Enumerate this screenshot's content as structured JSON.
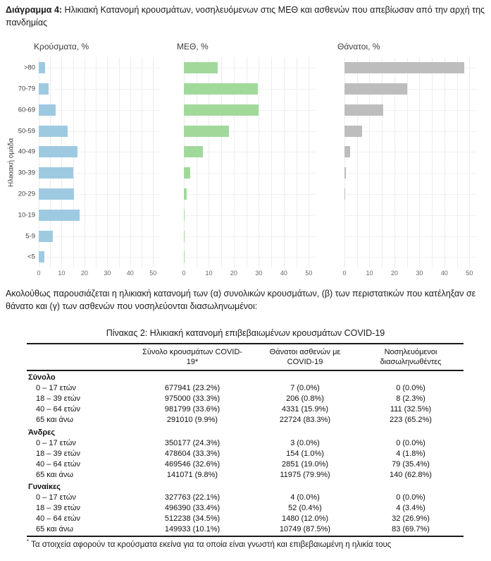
{
  "heading": {
    "prefix": "Διάγραμμα 4:",
    "text": " Ηλικιακή Κατανομή κρουσμάτων, νοσηλευόμενων στις ΜΕΘ και ασθενών που απεβίωσαν από την αρχή της πανδημίας"
  },
  "chart_data": [
    {
      "type": "bar",
      "orientation": "horizontal",
      "title": "Κρούσματα, %",
      "ylabel": "Ηλικιακή ομάδα",
      "categories": [
        ">80",
        "70-79",
        "60-69",
        "50-59",
        "40-49",
        "30-39",
        "20-29",
        "10-19",
        "5-9",
        "<5"
      ],
      "values": [
        2.7,
        4.2,
        7.5,
        12.5,
        17.1,
        15.0,
        15.3,
        18.0,
        6.3,
        2.6
      ],
      "color": "#9ECAE1",
      "xlim": [
        0,
        50
      ],
      "xticks": [
        0,
        10,
        20,
        30,
        40,
        50
      ],
      "grid": true,
      "legend": "none"
    },
    {
      "type": "bar",
      "orientation": "horizontal",
      "title": "ΜΕΘ, %",
      "ylabel": "",
      "categories": [
        ">80",
        "70-79",
        "60-69",
        "50-59",
        "40-49",
        "30-39",
        "20-29",
        "10-19",
        "5-9",
        "<5"
      ],
      "values": [
        13.5,
        29.5,
        30.0,
        18.0,
        7.5,
        2.5,
        1.0,
        0.3,
        0.1,
        0.3
      ],
      "color": "#A1D99B",
      "xlim": [
        0,
        50
      ],
      "xticks": [
        0,
        10,
        20,
        30,
        40,
        50
      ],
      "grid": true,
      "legend": "none"
    },
    {
      "type": "bar",
      "orientation": "horizontal",
      "title": "Θάνατοι, %",
      "ylabel": "",
      "categories": [
        ">80",
        "70-79",
        "60-69",
        "50-59",
        "40-49",
        "30-39",
        "20-29",
        "10-19",
        "5-9",
        "<5"
      ],
      "values": [
        48.0,
        25.0,
        15.5,
        7.0,
        2.3,
        0.6,
        0.2,
        0,
        0,
        0
      ],
      "color": "#BDBDBD",
      "xlim": [
        0,
        50
      ],
      "xticks": [
        0,
        10,
        20,
        30,
        40,
        50
      ],
      "grid": true,
      "legend": "none"
    }
  ],
  "paragraph": "Ακολούθως παρουσιάζεται η ηλικιακή κατανομή των (α) συνολικών κρουσμάτων, (β) των περιστατικών που κατέληξαν σε θάνατο και (γ) των ασθενών που νοσηλεύονται διασωληνωμένοι:",
  "table": {
    "title": "Πίνακας 2: Ηλικιακή κατανομή επιβεβαιωμένων κρουσμάτων COVID-19",
    "columns": [
      "",
      "Σύνολο κρουσμάτων COVID-19*",
      "Θάνατοι ασθενών με COVID-19",
      "Νοσηλευόμενοι διασωληνωθέντες"
    ],
    "sections": [
      {
        "label": "Σύνολο",
        "rows": [
          [
            "0 – 17 ετών",
            "677941 (23.2%)",
            "7 (0.0%)",
            "0 (0.0%)"
          ],
          [
            "18 – 39 ετών",
            "975000 (33.3%)",
            "206 (0.8%)",
            "8 (2.3%)"
          ],
          [
            "40 – 64 ετών",
            "981799 (33.6%)",
            "4331 (15.9%)",
            "111 (32.5%)"
          ],
          [
            "65 και άνω",
            "291010 (9.9%)",
            "22724 (83.3%)",
            "223 (65.2%)"
          ]
        ]
      },
      {
        "label": "Άνδρες",
        "rows": [
          [
            "0 – 17 ετών",
            "350177 (24.3%)",
            "3 (0.0%)",
            "0 (0.0%)"
          ],
          [
            "18 – 39 ετών",
            "478604 (33.3%)",
            "154 (1.0%)",
            "4 (1.8%)"
          ],
          [
            "40 – 64 ετών",
            "469546 (32.6%)",
            "2851 (19.0%)",
            "79 (35.4%)"
          ],
          [
            "65 και άνω",
            "141071 (9.8%)",
            "11975 (79.9%)",
            "140 (62.8%)"
          ]
        ]
      },
      {
        "label": "Γυναίκες",
        "rows": [
          [
            "0 – 17 ετών",
            "327763 (22.1%)",
            "4 (0.0%)",
            "0 (0.0%)"
          ],
          [
            "18 – 39 ετών",
            "496390 (33.4%)",
            "52 (0.4%)",
            "4 (3.4%)"
          ],
          [
            "40 – 64 ετών",
            "512238 (34.5%)",
            "1480 (12.0%)",
            "32 (26.9%)"
          ],
          [
            "65 και άνω",
            "149933 (10.1%)",
            "10749 (87.5%)",
            "83 (69.7%)"
          ]
        ]
      }
    ],
    "footnote_marker": "*",
    "footnote": "Τα στοιχεία αφορούν τα κρούσματα εκείνα για τα οποία είναι γνωστή και επιβεβαιωμένη η ηλικία τους"
  },
  "colors": {
    "cases_bar": "#9ECAE1",
    "icu_bar": "#A1D99B",
    "deaths_bar": "#BDBDBD",
    "gridline": "#ECECEC",
    "tick_label": "#666666",
    "table_border": "#1A1A1A"
  }
}
